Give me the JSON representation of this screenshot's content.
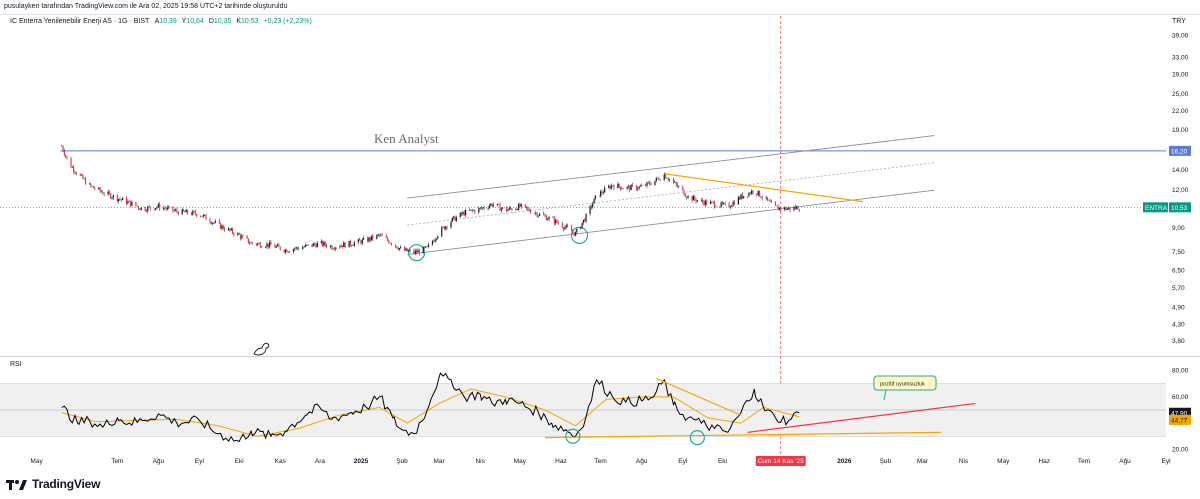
{
  "header": {
    "attribution": "pusulayken tarafından TradingView.com ile Ara 02, 2025 19:58 UTC+2 tarihinde oluşturuldu"
  },
  "legend": {
    "symbol": "IC Enterra Yenilenebilir Enerji AS · 1G · BIST",
    "open_key": "A",
    "open_val": "10,39",
    "high_key": "Y",
    "high_val": "10,64",
    "low_key": "D",
    "low_val": "10,35",
    "close_key": "K",
    "close_val": "10,53",
    "change": "+0,23 (+2,23%)"
  },
  "currency": "TRY",
  "watermark": "Ken Analyst",
  "rsi_title": "RSI",
  "annotation": "pozitif uyumsuzluk",
  "price_labels": {
    "hline": "16,20",
    "ticker": "ENTRA",
    "last": "10,53",
    "rsi_value": "47,90",
    "rsi_ma": "44,77"
  },
  "crosshair_date": "Cum 14 Kas '25",
  "footer": {
    "brand": "TradingView"
  },
  "colors": {
    "up": "#089981",
    "down": "#f23645",
    "candle": "#131722",
    "channel": "#8f8aa3",
    "hline": "#5b7bd5",
    "trend": "#f7a600",
    "rsi": "#000000",
    "rsi_ma": "#f7a600",
    "rsi_trend": "#f23645",
    "circle": "#22ab94",
    "crosshair": "#f23645"
  },
  "chart_data": [
    {
      "type": "candlestick",
      "symbol": "ENTRA",
      "exchange": "BIST",
      "interval": "1G",
      "y_scale": "log",
      "y_ticks": [
        "39,00",
        "33,00",
        "29,00",
        "25,00",
        "22,00",
        "19,00",
        "16,20",
        "14,00",
        "12,00",
        "10,53",
        "9,00",
        "7,50",
        "6,50",
        "5,70",
        "4,90",
        "4,30",
        "3,80"
      ],
      "x_ticks": [
        "May",
        "Tem",
        "Ağu",
        "Eyl",
        "Eki",
        "Kas",
        "Ara",
        "2025",
        "Şub",
        "Mar",
        "Nis",
        "May",
        "Haz",
        "Tem",
        "Ağu",
        "Eyl",
        "Eki",
        "Cum 14 Kas '25",
        "2026",
        "Şub",
        "Mar",
        "Nis",
        "May",
        "Haz",
        "Tem",
        "Ağu",
        "Eyl"
      ],
      "x_range": [
        "2024-04-20",
        "2026-09-10"
      ],
      "y_range": [
        3.6,
        42
      ],
      "series_close": [
        [
          "2024-05-20",
          16.8
        ],
        [
          "2024-05-25",
          14.8
        ],
        [
          "2024-06-01",
          13.6
        ],
        [
          "2024-06-10",
          12.4
        ],
        [
          "2024-06-20",
          11.8
        ],
        [
          "2024-07-01",
          11.3
        ],
        [
          "2024-07-10",
          10.9
        ],
        [
          "2024-07-20",
          10.4
        ],
        [
          "2024-08-01",
          10.6
        ],
        [
          "2024-08-15",
          10.2
        ],
        [
          "2024-09-01",
          10.0
        ],
        [
          "2024-09-15",
          9.2
        ],
        [
          "2024-10-01",
          8.5
        ],
        [
          "2024-10-10",
          8.0
        ],
        [
          "2024-10-25",
          7.9
        ],
        [
          "2024-11-05",
          7.6
        ],
        [
          "2024-11-20",
          7.8
        ],
        [
          "2024-12-01",
          8.0
        ],
        [
          "2024-12-10",
          7.8
        ],
        [
          "2024-12-25",
          8.0
        ],
        [
          "2025-01-05",
          8.2
        ],
        [
          "2025-01-15",
          8.5
        ],
        [
          "2025-01-25",
          8.0
        ],
        [
          "2025-02-01",
          7.6
        ],
        [
          "2025-02-10",
          7.45
        ],
        [
          "2025-02-20",
          7.7
        ],
        [
          "2025-03-01",
          8.7
        ],
        [
          "2025-03-10",
          9.5
        ],
        [
          "2025-03-20",
          10.1
        ],
        [
          "2025-04-01",
          10.4
        ],
        [
          "2025-04-10",
          10.8
        ],
        [
          "2025-04-20",
          10.3
        ],
        [
          "2025-05-01",
          10.6
        ],
        [
          "2025-05-15",
          10.0
        ],
        [
          "2025-05-25",
          9.6
        ],
        [
          "2025-06-05",
          9.0
        ],
        [
          "2025-06-12",
          8.6
        ],
        [
          "2025-06-20",
          9.8
        ],
        [
          "2025-06-28",
          11.5
        ],
        [
          "2025-07-10",
          12.5
        ],
        [
          "2025-07-20",
          12.2
        ],
        [
          "2025-08-01",
          12.3
        ],
        [
          "2025-08-10",
          12.8
        ],
        [
          "2025-08-18",
          13.5
        ],
        [
          "2025-08-25",
          12.7
        ],
        [
          "2025-09-05",
          11.4
        ],
        [
          "2025-09-15",
          11.0
        ],
        [
          "2025-09-25",
          10.8
        ],
        [
          "2025-10-05",
          10.6
        ],
        [
          "2025-10-15",
          11.4
        ],
        [
          "2025-10-25",
          12.0
        ],
        [
          "2025-11-01",
          11.3
        ],
        [
          "2025-11-10",
          10.5
        ],
        [
          "2025-11-20",
          10.4
        ],
        [
          "2025-11-28",
          10.53
        ]
      ]
    },
    {
      "type": "line",
      "name": "RSI",
      "y_ticks": [
        "80,00",
        "60,00",
        "40,00",
        "20,00"
      ],
      "y_range": [
        15,
        85
      ],
      "band": [
        30,
        70
      ],
      "midline": 50,
      "series": [
        {
          "name": "RSI",
          "points": [
            [
              "2024-05-20",
              52
            ],
            [
              "2024-06-01",
              40
            ],
            [
              "2024-06-10",
              42
            ],
            [
              "2024-06-20",
              37
            ],
            [
              "2024-07-01",
              44
            ],
            [
              "2024-07-10",
              40
            ],
            [
              "2024-07-20",
              42
            ],
            [
              "2024-08-01",
              47
            ],
            [
              "2024-08-15",
              40
            ],
            [
              "2024-09-01",
              42
            ],
            [
              "2024-09-15",
              32
            ],
            [
              "2024-10-01",
              26
            ],
            [
              "2024-10-10",
              34
            ],
            [
              "2024-10-25",
              30
            ],
            [
              "2024-11-05",
              34
            ],
            [
              "2024-11-20",
              46
            ],
            [
              "2024-12-01",
              52
            ],
            [
              "2024-12-10",
              43
            ],
            [
              "2024-12-25",
              48
            ],
            [
              "2025-01-05",
              52
            ],
            [
              "2025-01-15",
              60
            ],
            [
              "2025-01-25",
              44
            ],
            [
              "2025-02-01",
              35
            ],
            [
              "2025-02-10",
              32
            ],
            [
              "2025-02-20",
              50
            ],
            [
              "2025-03-01",
              75
            ],
            [
              "2025-03-10",
              73
            ],
            [
              "2025-03-20",
              60
            ],
            [
              "2025-04-01",
              62
            ],
            [
              "2025-04-10",
              55
            ],
            [
              "2025-04-20",
              58
            ],
            [
              "2025-05-01",
              55
            ],
            [
              "2025-05-15",
              48
            ],
            [
              "2025-05-25",
              40
            ],
            [
              "2025-06-05",
              35
            ],
            [
              "2025-06-12",
              30
            ],
            [
              "2025-06-20",
              45
            ],
            [
              "2025-06-28",
              73
            ],
            [
              "2025-07-10",
              60
            ],
            [
              "2025-07-20",
              56
            ],
            [
              "2025-08-01",
              57
            ],
            [
              "2025-08-10",
              60
            ],
            [
              "2025-08-18",
              73
            ],
            [
              "2025-08-25",
              54
            ],
            [
              "2025-09-05",
              44
            ],
            [
              "2025-09-15",
              40
            ],
            [
              "2025-09-25",
              36
            ],
            [
              "2025-10-05",
              33
            ],
            [
              "2025-10-15",
              48
            ],
            [
              "2025-10-25",
              66
            ],
            [
              "2025-11-01",
              52
            ],
            [
              "2025-11-10",
              44
            ],
            [
              "2025-11-20",
              42
            ],
            [
              "2025-11-28",
              47.9
            ]
          ]
        },
        {
          "name": "RSI MA",
          "points": [
            [
              "2024-05-20",
              48
            ],
            [
              "2024-06-15",
              41
            ],
            [
              "2024-07-15",
              42
            ],
            [
              "2024-08-15",
              43
            ],
            [
              "2024-09-15",
              38
            ],
            [
              "2024-10-15",
              30
            ],
            [
              "2024-11-15",
              36
            ],
            [
              "2024-12-15",
              46
            ],
            [
              "2025-01-15",
              52
            ],
            [
              "2025-02-05",
              40
            ],
            [
              "2025-03-01",
              55
            ],
            [
              "2025-03-25",
              66
            ],
            [
              "2025-04-20",
              60
            ],
            [
              "2025-05-20",
              50
            ],
            [
              "2025-06-12",
              38
            ],
            [
              "2025-07-05",
              58
            ],
            [
              "2025-08-01",
              60
            ],
            [
              "2025-08-25",
              60
            ],
            [
              "2025-09-20",
              44
            ],
            [
              "2025-10-15",
              40
            ],
            [
              "2025-11-01",
              52
            ],
            [
              "2025-11-28",
              44.77
            ]
          ]
        }
      ]
    }
  ]
}
